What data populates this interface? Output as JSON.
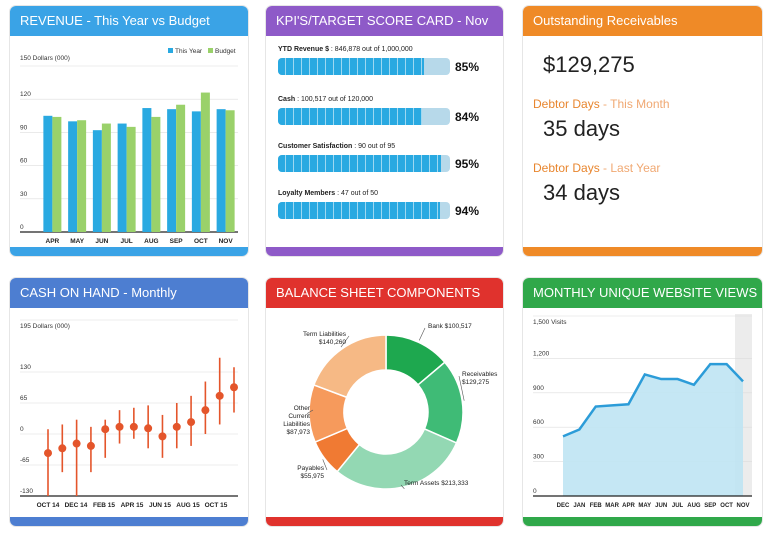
{
  "colors": {
    "revenue_header": "#3aa3e6",
    "kpi_header": "#8e5ac8",
    "receivables_header": "#ef8a27",
    "cash_header": "#4d7ed1",
    "balance_header": "#e0322d",
    "views_header": "#30a84a",
    "this_year": "#29a9e1",
    "budget": "#9ad16a",
    "cash_line": "#e4552b",
    "views_fill": "#bfe4f3",
    "views_line": "#2c9cd8"
  },
  "revenue": {
    "title": "REVENUE - This Year vs Budget",
    "chart_data": {
      "type": "bar",
      "ylabel": "150 Dollars (000)",
      "ylim": [
        0,
        150
      ],
      "yticks": [
        "0",
        "30",
        "60",
        "90",
        "120"
      ],
      "categories": [
        "APR",
        "MAY",
        "JUN",
        "JUL",
        "AUG",
        "SEP",
        "OCT",
        "NOV"
      ],
      "series": [
        {
          "name": "This Year",
          "values": [
            105,
            100,
            92,
            98,
            112,
            111,
            109,
            111
          ]
        },
        {
          "name": "Budget",
          "values": [
            104,
            101,
            98,
            95,
            104,
            115,
            126,
            110
          ]
        }
      ],
      "legend": "top-right"
    }
  },
  "kpi": {
    "title": "KPI'S/TARGET SCORE CARD - Nov",
    "items": [
      {
        "name": "YTD Revenue $",
        "detail": " : 846,878 out of 1,000,000",
        "value": 0.85,
        "pct": "85%"
      },
      {
        "name": "Cash",
        "detail": " : 100,517 out of 120,000",
        "value": 0.84,
        "pct": "84%"
      },
      {
        "name": "Customer Satisfaction",
        "detail": " : 90 out of 95",
        "value": 0.95,
        "pct": "95%"
      },
      {
        "name": "Loyalty Members",
        "detail": " : 47 out of 50",
        "value": 0.94,
        "pct": "94%"
      }
    ]
  },
  "receivables": {
    "title": "Outstanding Receivables",
    "amount": "$129,275",
    "this_month_label": "Debtor Days",
    "this_month_suffix": " - This Month",
    "this_month_value": "35 days",
    "last_year_label": "Debtor Days",
    "last_year_suffix": " - Last Year",
    "last_year_value": "34 days"
  },
  "cash": {
    "title": "CASH ON HAND - Monthly",
    "chart_data": {
      "type": "scatter",
      "ylabel": "195 Dollars (000)",
      "ylim": [
        -130,
        195
      ],
      "yticks": [
        "-130",
        "-65",
        "0",
        "65",
        "130"
      ],
      "xticks": [
        "OCT 14",
        "DEC 14",
        "FEB 15",
        "APR 15",
        "JUN 15",
        "AUG 15",
        "OCT 15"
      ],
      "points": [
        {
          "value": -40,
          "low": -130,
          "high": 10
        },
        {
          "value": -30,
          "low": -80,
          "high": 20
        },
        {
          "value": -20,
          "low": -130,
          "high": 30
        },
        {
          "value": -25,
          "low": -80,
          "high": 15
        },
        {
          "value": 10,
          "low": -50,
          "high": 30
        },
        {
          "value": 15,
          "low": -20,
          "high": 50
        },
        {
          "value": 15,
          "low": -10,
          "high": 55
        },
        {
          "value": 12,
          "low": -30,
          "high": 60
        },
        {
          "value": -5,
          "low": -50,
          "high": 40
        },
        {
          "value": 15,
          "low": -30,
          "high": 65
        },
        {
          "value": 25,
          "low": -25,
          "high": 80
        },
        {
          "value": 50,
          "low": 0,
          "high": 110
        },
        {
          "value": 80,
          "low": 20,
          "high": 160
        },
        {
          "value": 98,
          "low": 45,
          "high": 140
        }
      ]
    }
  },
  "balance": {
    "title": "BALANCE SHEET COMPONENTS",
    "chart_data": {
      "type": "pie",
      "donut": true,
      "slices": [
        {
          "label": "Bank",
          "amount": "$100,517",
          "value": 100517,
          "color": "#1ea84f"
        },
        {
          "label": "Receivables",
          "amount": "$129,275",
          "value": 129275,
          "color": "#3fbb76"
        },
        {
          "label": "Term Assets",
          "amount": "$213,333",
          "value": 213333,
          "color": "#93d8b3"
        },
        {
          "label": "Payables",
          "amount": "$55,975",
          "value": 55975,
          "color": "#f07a33"
        },
        {
          "label": "Other Current Liabilities",
          "amount": "$87,973",
          "value": 87973,
          "color": "#f69a5c"
        },
        {
          "label": "Term Liabilities",
          "amount": "$140,260",
          "value": 140260,
          "color": "#f6b985"
        }
      ]
    }
  },
  "views": {
    "title": "MONTHLY UNIQUE WEBSITE VIEWS",
    "chart_data": {
      "type": "area",
      "ylabel": "1,500 Visits",
      "ylim": [
        0,
        1500
      ],
      "yticks": [
        "0",
        "300",
        "600",
        "900",
        "1,200"
      ],
      "x": [
        "DEC",
        "JAN",
        "FEB",
        "MAR",
        "APR",
        "MAY",
        "JUN",
        "JUL",
        "AUG",
        "SEP",
        "OCT",
        "NOV"
      ],
      "values": [
        520,
        580,
        780,
        790,
        800,
        1060,
        1020,
        1020,
        970,
        1150,
        1150,
        1000
      ]
    }
  }
}
